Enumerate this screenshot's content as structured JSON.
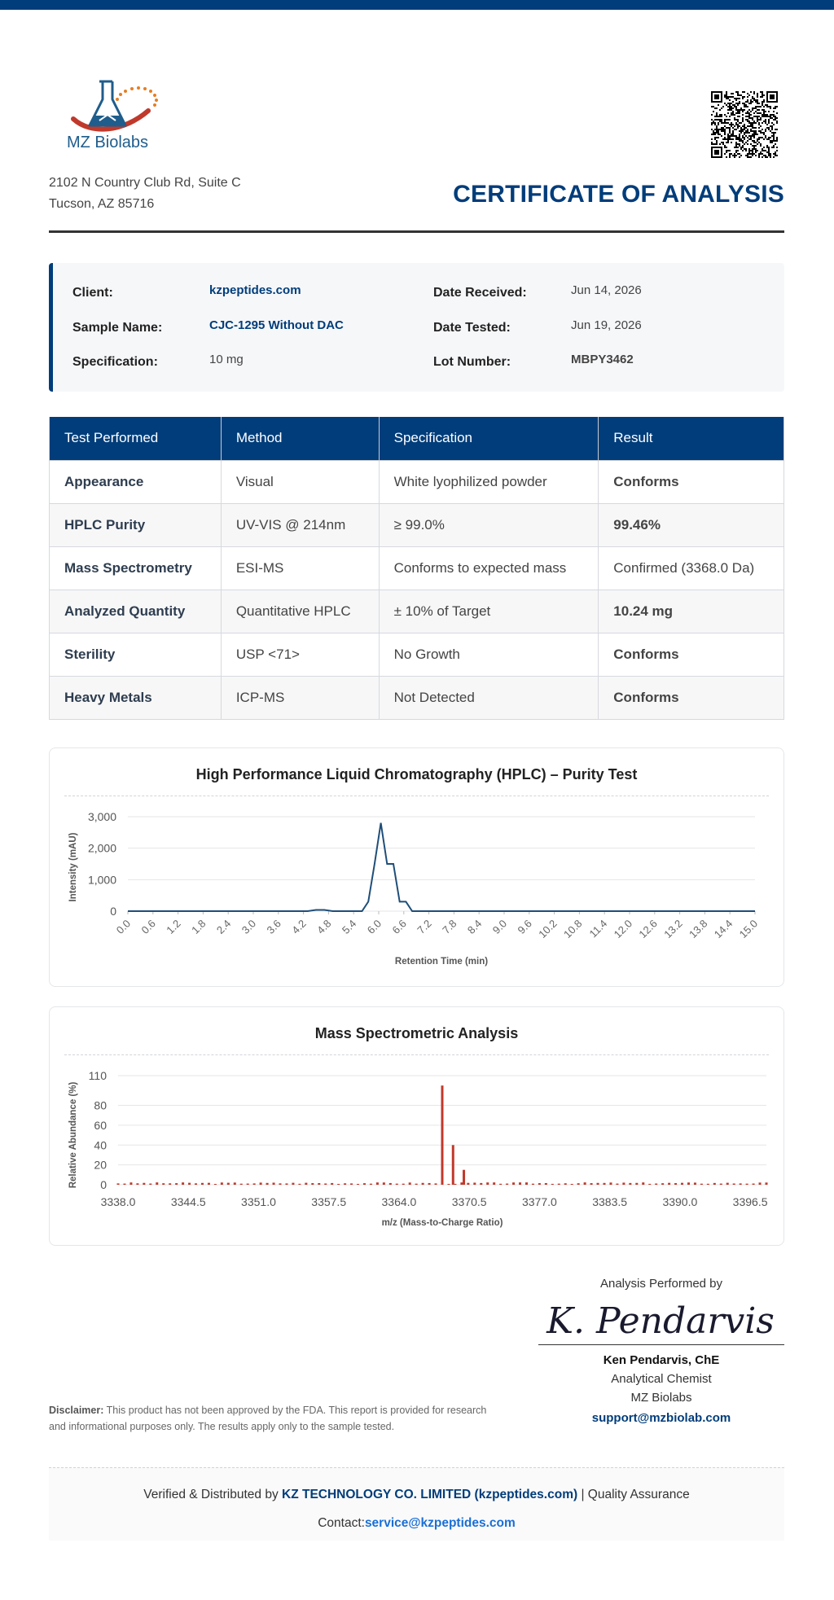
{
  "brand": {
    "logo_text": "MZ Biolabs",
    "address_line1": "2102 N Country Club Rd, Suite C",
    "address_line2": "Tucson, AZ 85716",
    "accent_color": "#003d7a"
  },
  "document": {
    "title": "CERTIFICATE OF ANALYSIS"
  },
  "info": {
    "client_label": "Client:",
    "client": "kzpeptides.com",
    "sample_label": "Sample Name:",
    "sample": "CJC-1295 Without DAC",
    "spec_label": "Specification:",
    "spec": "10 mg",
    "received_label": "Date Received:",
    "received": "Jun 14, 2026",
    "tested_label": "Date Tested:",
    "tested": "Jun 19, 2026",
    "lot_label": "Lot Number:",
    "lot": "MBPY3462"
  },
  "tests": {
    "headers": [
      "Test Performed",
      "Method",
      "Specification",
      "Result"
    ],
    "rows": [
      [
        "Appearance",
        "Visual",
        "White lyophilized powder",
        "Conforms"
      ],
      [
        "HPLC Purity",
        "UV-VIS @ 214nm",
        "≥ 99.0%",
        "99.46%"
      ],
      [
        "Mass Spectrometry",
        "ESI-MS",
        "Conforms to expected mass",
        "Confirmed (3368.0 Da)"
      ],
      [
        "Analyzed Quantity",
        "Quantitative HPLC",
        "± 10% of Target",
        "10.24 mg"
      ],
      [
        "Sterility",
        "USP <71>",
        "No Growth",
        "Conforms"
      ],
      [
        "Heavy Metals",
        "ICP-MS",
        "Not Detected",
        "Conforms"
      ]
    ]
  },
  "chart_data": [
    {
      "type": "line",
      "title": "High Performance Liquid Chromatography (HPLC) – Purity Test",
      "xlabel": "Retention Time (min)",
      "ylabel": "Intensity (mAU)",
      "ylim": [
        0,
        3000
      ],
      "yticks": [
        "0",
        "1,000",
        "2,000",
        "3,000"
      ],
      "xticks": [
        "0.0",
        "0.6",
        "1.2",
        "1.8",
        "2.4",
        "3.0",
        "3.6",
        "4.2",
        "4.8",
        "5.4",
        "6.0",
        "6.6",
        "7.2",
        "7.8",
        "8.4",
        "9.0",
        "9.6",
        "10.2",
        "10.8",
        "11.4",
        "12.0",
        "12.6",
        "13.2",
        "13.8",
        "14.4",
        "15.0"
      ],
      "color": "#1f4e79",
      "x": [
        0.0,
        4.3,
        4.5,
        4.7,
        4.9,
        5.6,
        5.75,
        5.9,
        6.05,
        6.2,
        6.35,
        6.5,
        6.65,
        6.8,
        15.0
      ],
      "y": [
        0,
        0,
        40,
        40,
        0,
        0,
        300,
        1500,
        2800,
        1500,
        1500,
        300,
        300,
        0,
        0
      ],
      "grid": true
    },
    {
      "type": "bar",
      "title": "Mass Spectrometric Analysis",
      "xlabel": "m/z (Mass-to-Charge Ratio)",
      "ylabel": "Relative Abundance (%)",
      "ylim": [
        0,
        110
      ],
      "yticks": [
        "0",
        "20",
        "40",
        "60",
        "80",
        "110"
      ],
      "xticks": [
        "3338.0",
        "3344.5",
        "3351.0",
        "3357.5",
        "3364.0",
        "3370.5",
        "3377.0",
        "3383.5",
        "3390.0",
        "3396.5"
      ],
      "color": "#c0392b",
      "xrange": [
        3338.0,
        3398.0
      ],
      "peaks": [
        {
          "x": 3368.0,
          "y": 100
        },
        {
          "x": 3369.0,
          "y": 40
        },
        {
          "x": 3370.0,
          "y": 15
        }
      ],
      "baseline_level": 2,
      "grid": true
    }
  ],
  "signature": {
    "heading": "Analysis Performed by",
    "script": "K. Pendarvis",
    "name": "Ken Pendarvis, ChE",
    "role": "Analytical Chemist",
    "org": "MZ Biolabs",
    "email": "support@mzbiolab.com"
  },
  "disclaimer": {
    "label": "Disclaimer:",
    "text": " This product has not been approved by the FDA. This report is provided for research and informational purposes only. The results apply only to the sample tested."
  },
  "footer": {
    "prefix": "Verified & Distributed by ",
    "company": "KZ TECHNOLOGY CO. LIMITED (kzpeptides.com)",
    "suffix": " | Quality Assurance",
    "contact_label": "Contact:",
    "contact_email": "service@kzpeptides.com"
  }
}
